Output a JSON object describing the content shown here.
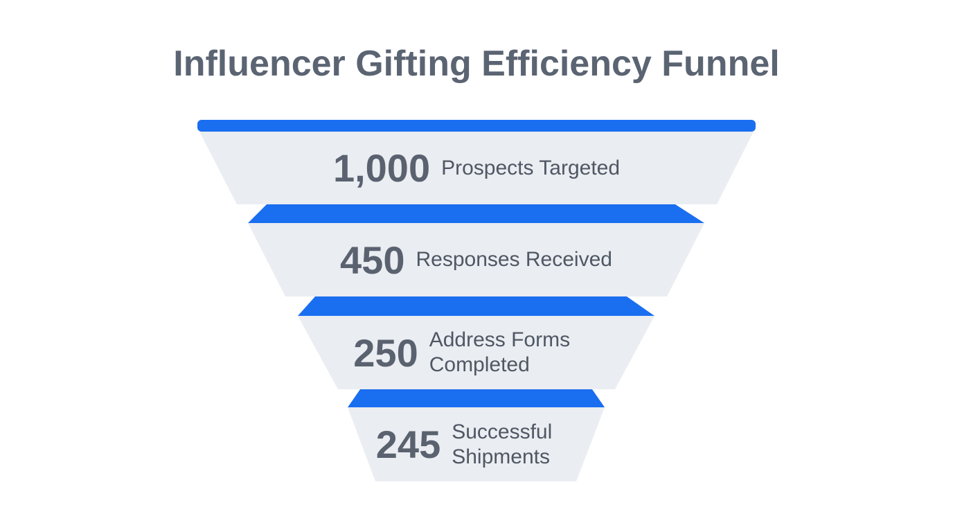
{
  "chart_data": {
    "type": "funnel",
    "title": "Influencer Gifting Efficiency Funnel",
    "categories": [
      "Prospects Targeted",
      "Responses Received",
      "Address Forms Completed",
      "Successful Shipments"
    ],
    "values": [
      1000,
      450,
      250,
      245
    ],
    "value_labels": [
      "1,000",
      "450",
      "250",
      "245"
    ],
    "color": "#1a6ef0"
  }
}
